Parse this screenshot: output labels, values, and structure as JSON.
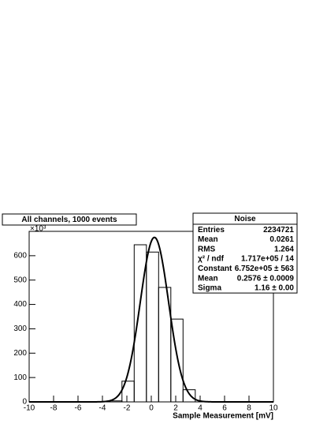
{
  "chart_data": {
    "type": "histogram",
    "title": "All channels, 1000 events",
    "x_label": "Sample Measurement [mV]",
    "y_exponent": "×10³",
    "bins": [
      -3.4,
      -2.4,
      -1.4,
      -0.4,
      0.6,
      1.6,
      2.6,
      3.6
    ],
    "values": [
      4,
      85,
      645,
      615,
      470,
      340,
      50
    ],
    "color": "#000000",
    "xlim": [
      -10,
      10
    ],
    "xticks": [
      -10,
      -8,
      -6,
      -4,
      -2,
      0,
      2,
      4,
      6,
      8,
      10
    ],
    "ylim": [
      0,
      700
    ],
    "yticks": [
      0,
      100,
      200,
      300,
      400,
      500,
      600
    ],
    "fit": {
      "constant": 675.2,
      "mean": 0.2576,
      "sigma": 1.16
    },
    "stats": {
      "title": "Noise",
      "rows": [
        [
          "Entries",
          "2234721"
        ],
        [
          "Mean",
          "0.0261"
        ],
        [
          "RMS",
          "1.264"
        ],
        [
          "χ² / ndf",
          "1.717e+05 / 14"
        ],
        [
          "Constant",
          "6.752e+05 ± 563"
        ],
        [
          "Mean",
          "0.2576 ± 0.0009"
        ],
        [
          "Sigma",
          "1.16 ± 0.00"
        ]
      ]
    }
  }
}
